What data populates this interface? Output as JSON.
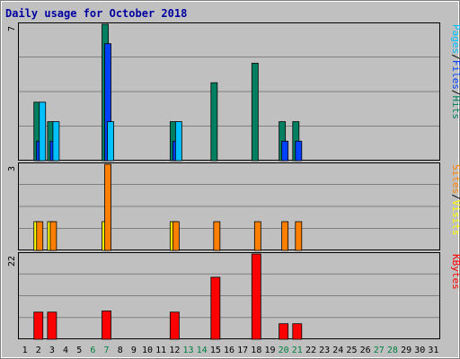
{
  "title": "Daily usage for October 2018",
  "colors": {
    "background": "#c0c0c0",
    "plot": "#c0c0c0",
    "grid": "#808080",
    "title": "#0000a0",
    "weekend_label": "#008040",
    "label": "#000000",
    "hits": "#008060",
    "files": "#0040ff",
    "pages": "#00c0ff",
    "visits": "#ffff00",
    "sites": "#ff8000",
    "kbytes": "#ff0000"
  },
  "chart_data": [
    {
      "type": "bar",
      "panel": "top",
      "max_label": "7",
      "ylim": [
        0,
        7
      ],
      "grid": true,
      "x": [
        1,
        2,
        3,
        4,
        5,
        6,
        7,
        8,
        9,
        10,
        11,
        12,
        13,
        14,
        15,
        16,
        17,
        18,
        19,
        20,
        21,
        22,
        23,
        24,
        25,
        26,
        27,
        28,
        29,
        30,
        31
      ],
      "weekend_days": [
        6,
        7,
        13,
        14,
        20,
        21,
        27,
        28
      ],
      "legend": [
        {
          "key": "pages",
          "label": "Pages"
        },
        {
          "key": "sep1",
          "label": "/"
        },
        {
          "key": "files",
          "label": "Files"
        },
        {
          "key": "sep2",
          "label": "/"
        },
        {
          "key": "hits",
          "label": "Hits"
        }
      ],
      "series": [
        {
          "name": "Hits",
          "key": "hits",
          "values": [
            0,
            3,
            2,
            0,
            0,
            0,
            7,
            0,
            0,
            0,
            0,
            2,
            0,
            0,
            4,
            0,
            0,
            5,
            0,
            2,
            2,
            0,
            0,
            0,
            0,
            0,
            0,
            0,
            0,
            0,
            0
          ]
        },
        {
          "name": "Files",
          "key": "files",
          "values": [
            0,
            1,
            1,
            0,
            0,
            0,
            6,
            0,
            0,
            0,
            0,
            1,
            0,
            0,
            0,
            0,
            0,
            0,
            0,
            1,
            1,
            0,
            0,
            0,
            0,
            0,
            0,
            0,
            0,
            0,
            0
          ]
        },
        {
          "name": "Pages",
          "key": "pages",
          "values": [
            0,
            3,
            2,
            0,
            0,
            0,
            2,
            0,
            0,
            0,
            0,
            2,
            0,
            0,
            0,
            0,
            0,
            0,
            0,
            0,
            0,
            0,
            0,
            0,
            0,
            0,
            0,
            0,
            0,
            0,
            0
          ]
        }
      ]
    },
    {
      "type": "bar",
      "panel": "middle",
      "max_label": "3",
      "ylim": [
        0,
        3
      ],
      "grid": true,
      "legend": [
        {
          "key": "sites",
          "label": "Sites"
        },
        {
          "key": "sep1",
          "label": "/"
        },
        {
          "key": "visits",
          "label": "Visits"
        }
      ],
      "series": [
        {
          "name": "Visits",
          "key": "visits",
          "values": [
            0,
            1,
            1,
            0,
            0,
            0,
            1,
            0,
            0,
            0,
            0,
            1,
            0,
            0,
            0,
            0,
            0,
            0,
            0,
            0,
            0,
            0,
            0,
            0,
            0,
            0,
            0,
            0,
            0,
            0,
            0
          ]
        },
        {
          "name": "Sites",
          "key": "sites",
          "values": [
            0,
            1,
            1,
            0,
            0,
            0,
            3,
            0,
            0,
            0,
            0,
            1,
            0,
            0,
            1,
            0,
            0,
            1,
            0,
            1,
            1,
            0,
            0,
            0,
            0,
            0,
            0,
            0,
            0,
            0,
            0
          ]
        }
      ]
    },
    {
      "type": "bar",
      "panel": "bottom",
      "max_label": "22",
      "ylim": [
        0,
        22
      ],
      "grid": true,
      "legend": [
        {
          "key": "kbytes",
          "label": "KBytes"
        }
      ],
      "series": [
        {
          "name": "KBytes",
          "key": "kbytes",
          "values": [
            0,
            7,
            7,
            0,
            0,
            0,
            7.3,
            0,
            0,
            0,
            0,
            7,
            0,
            0,
            16,
            0,
            0,
            22,
            0,
            4,
            4,
            0,
            0,
            0,
            0,
            0,
            0,
            0,
            0,
            0,
            0
          ]
        }
      ]
    }
  ]
}
